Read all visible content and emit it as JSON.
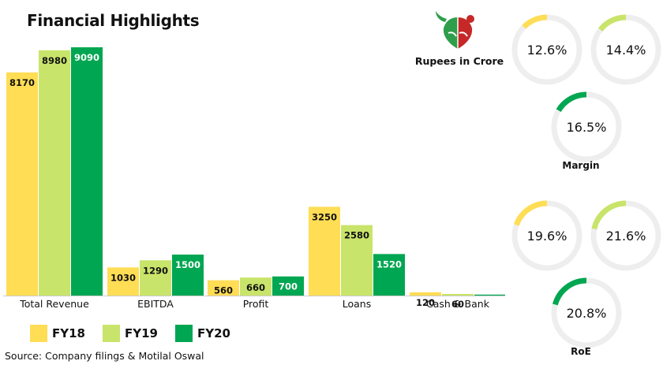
{
  "title": "Financial Highlights",
  "unit": "Rupees in Crore",
  "source": "Source: Company filings & Motilal Oswal",
  "colors": {
    "FY18": "#FFDD55",
    "FY19": "#C9E46A",
    "FY20": "#00A651"
  },
  "chart_data": [
    {
      "type": "bar",
      "categories": [
        "Total Revenue",
        "EBITDA",
        "Profit",
        "Loans",
        "Cash & Bank"
      ],
      "series": [
        {
          "name": "FY18",
          "values": [
            8170,
            1030,
            560,
            3250,
            120
          ]
        },
        {
          "name": "FY19",
          "values": [
            8980,
            1290,
            660,
            2580,
            60
          ]
        },
        {
          "name": "FY20",
          "values": [
            9090,
            1500,
            700,
            1520,
            35
          ]
        }
      ],
      "title": "",
      "xlabel": "",
      "ylabel": "",
      "legend": "bottom-left",
      "grid": false
    }
  ],
  "metrics": [
    {
      "name": "Margin",
      "rings": [
        {
          "series": "FY18",
          "label": "12.6%",
          "value": 12.6
        },
        {
          "series": "FY19",
          "label": "14.4%",
          "value": 14.4
        },
        {
          "series": "FY20",
          "label": "16.5%",
          "value": 16.5
        }
      ]
    },
    {
      "name": "RoE",
      "rings": [
        {
          "series": "FY18",
          "label": "19.6%",
          "value": 19.6
        },
        {
          "series": "FY19",
          "label": "21.6%",
          "value": 21.6
        },
        {
          "series": "FY20",
          "label": "20.8%",
          "value": 20.8
        }
      ]
    }
  ]
}
